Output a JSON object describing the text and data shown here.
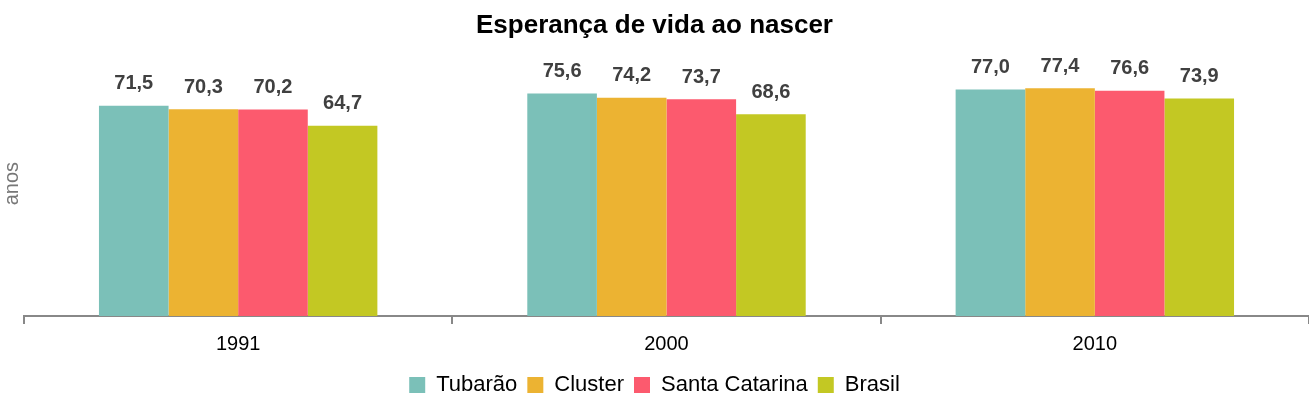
{
  "chart_data": {
    "type": "bar",
    "title": "Esperança de vida ao nascer",
    "ylabel": "anos",
    "categories": [
      "1991",
      "2000",
      "2010"
    ],
    "series": [
      {
        "name": "Tubarão",
        "color": "#7bc0b8",
        "values": [
          71.5,
          75.6,
          77.0
        ],
        "value_labels": [
          "71,5",
          "75,6",
          "77,0"
        ]
      },
      {
        "name": "Cluster",
        "color": "#ecb332",
        "values": [
          70.3,
          74.2,
          77.4
        ],
        "value_labels": [
          "70,3",
          "74,2",
          "77,4"
        ]
      },
      {
        "name": "Santa Catarina",
        "color": "#fc5a6e",
        "values": [
          70.2,
          73.7,
          76.6
        ],
        "value_labels": [
          "70,2",
          "73,7",
          "76,6"
        ]
      },
      {
        "name": "Brasil",
        "color": "#c3c823",
        "values": [
          64.7,
          68.6,
          73.9
        ],
        "value_labels": [
          "64,7",
          "68,6",
          "73,9"
        ]
      }
    ],
    "legend": "bottom",
    "grid": false,
    "tick_labels": "x"
  }
}
